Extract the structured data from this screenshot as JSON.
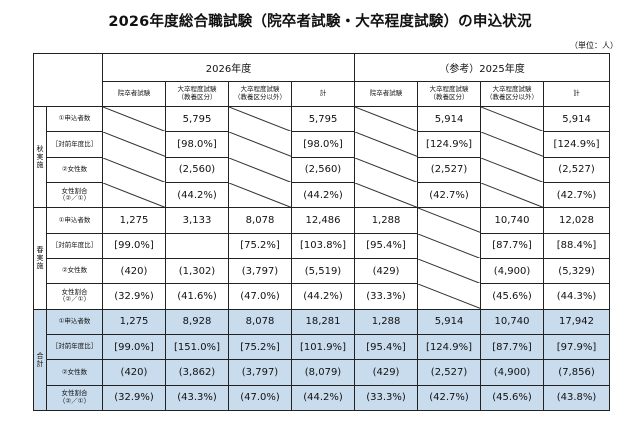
{
  "title": "2026年度総合職試験（院卒者試験・大卒程度試験）の申込状況",
  "unit": "（単位：人）",
  "years": {
    "current": "2026年度",
    "reference": "（参考）2025年度"
  },
  "columns": [
    "院卒者試験",
    "大卒程度試験\n（教養区分）",
    "大卒程度試験\n（教養区分以外）",
    "計"
  ],
  "groups": {
    "autumn": "秋実施",
    "spring": "春実施",
    "total": "合計"
  },
  "row_labels": {
    "applicants": "①申込者数",
    "ratio": "［対前年度比］",
    "women": "②女性数",
    "women_rate": "女性割合\n（②／①）"
  },
  "data": {
    "autumn": {
      "applicants": [
        "",
        "5,795",
        "",
        "5,795",
        "",
        "5,914",
        "",
        "5,914"
      ],
      "ratio": [
        "",
        "[98.0%]",
        "",
        "[98.0%]",
        "",
        "[124.9%]",
        "",
        "[124.9%]"
      ],
      "women": [
        "",
        "(2,560)",
        "",
        "(2,560)",
        "",
        "(2,527)",
        "",
        "(2,527)"
      ],
      "women_rate": [
        "",
        "(44.2%)",
        "",
        "(44.2%)",
        "",
        "(42.7%)",
        "",
        "(42.7%)"
      ]
    },
    "spring": {
      "applicants": [
        "1,275",
        "3,133",
        "8,078",
        "12,486",
        "1,288",
        "",
        "10,740",
        "12,028"
      ],
      "ratio": [
        "[99.0%]",
        "",
        "[75.2%]",
        "[103.8%]",
        "[95.4%]",
        "",
        "[87.7%]",
        "[88.4%]"
      ],
      "women": [
        "(420)",
        "(1,302)",
        "(3,797)",
        "(5,519)",
        "(429)",
        "",
        "(4,900)",
        "(5,329)"
      ],
      "women_rate": [
        "(32.9%)",
        "(41.6%)",
        "(47.0%)",
        "(44.2%)",
        "(33.3%)",
        "",
        "(45.6%)",
        "(44.3%)"
      ]
    },
    "total": {
      "applicants": [
        "1,275",
        "8,928",
        "8,078",
        "18,281",
        "1,288",
        "5,914",
        "10,740",
        "17,942"
      ],
      "ratio": [
        "[99.0%]",
        "[151.0%]",
        "[75.2%]",
        "[101.9%]",
        "[95.4%]",
        "[124.9%]",
        "[87.7%]",
        "[97.9%]"
      ],
      "women": [
        "(420)",
        "(3,862)",
        "(3,797)",
        "(8,079)",
        "(429)",
        "(2,527)",
        "(4,900)",
        "(7,856)"
      ],
      "women_rate": [
        "(32.9%)",
        "(43.3%)",
        "(47.0%)",
        "(44.2%)",
        "(33.3%)",
        "(42.7%)",
        "(45.6%)",
        "(43.8%)"
      ]
    }
  },
  "colors": {
    "total_shade": "#c9dced",
    "border": "#222222"
  }
}
